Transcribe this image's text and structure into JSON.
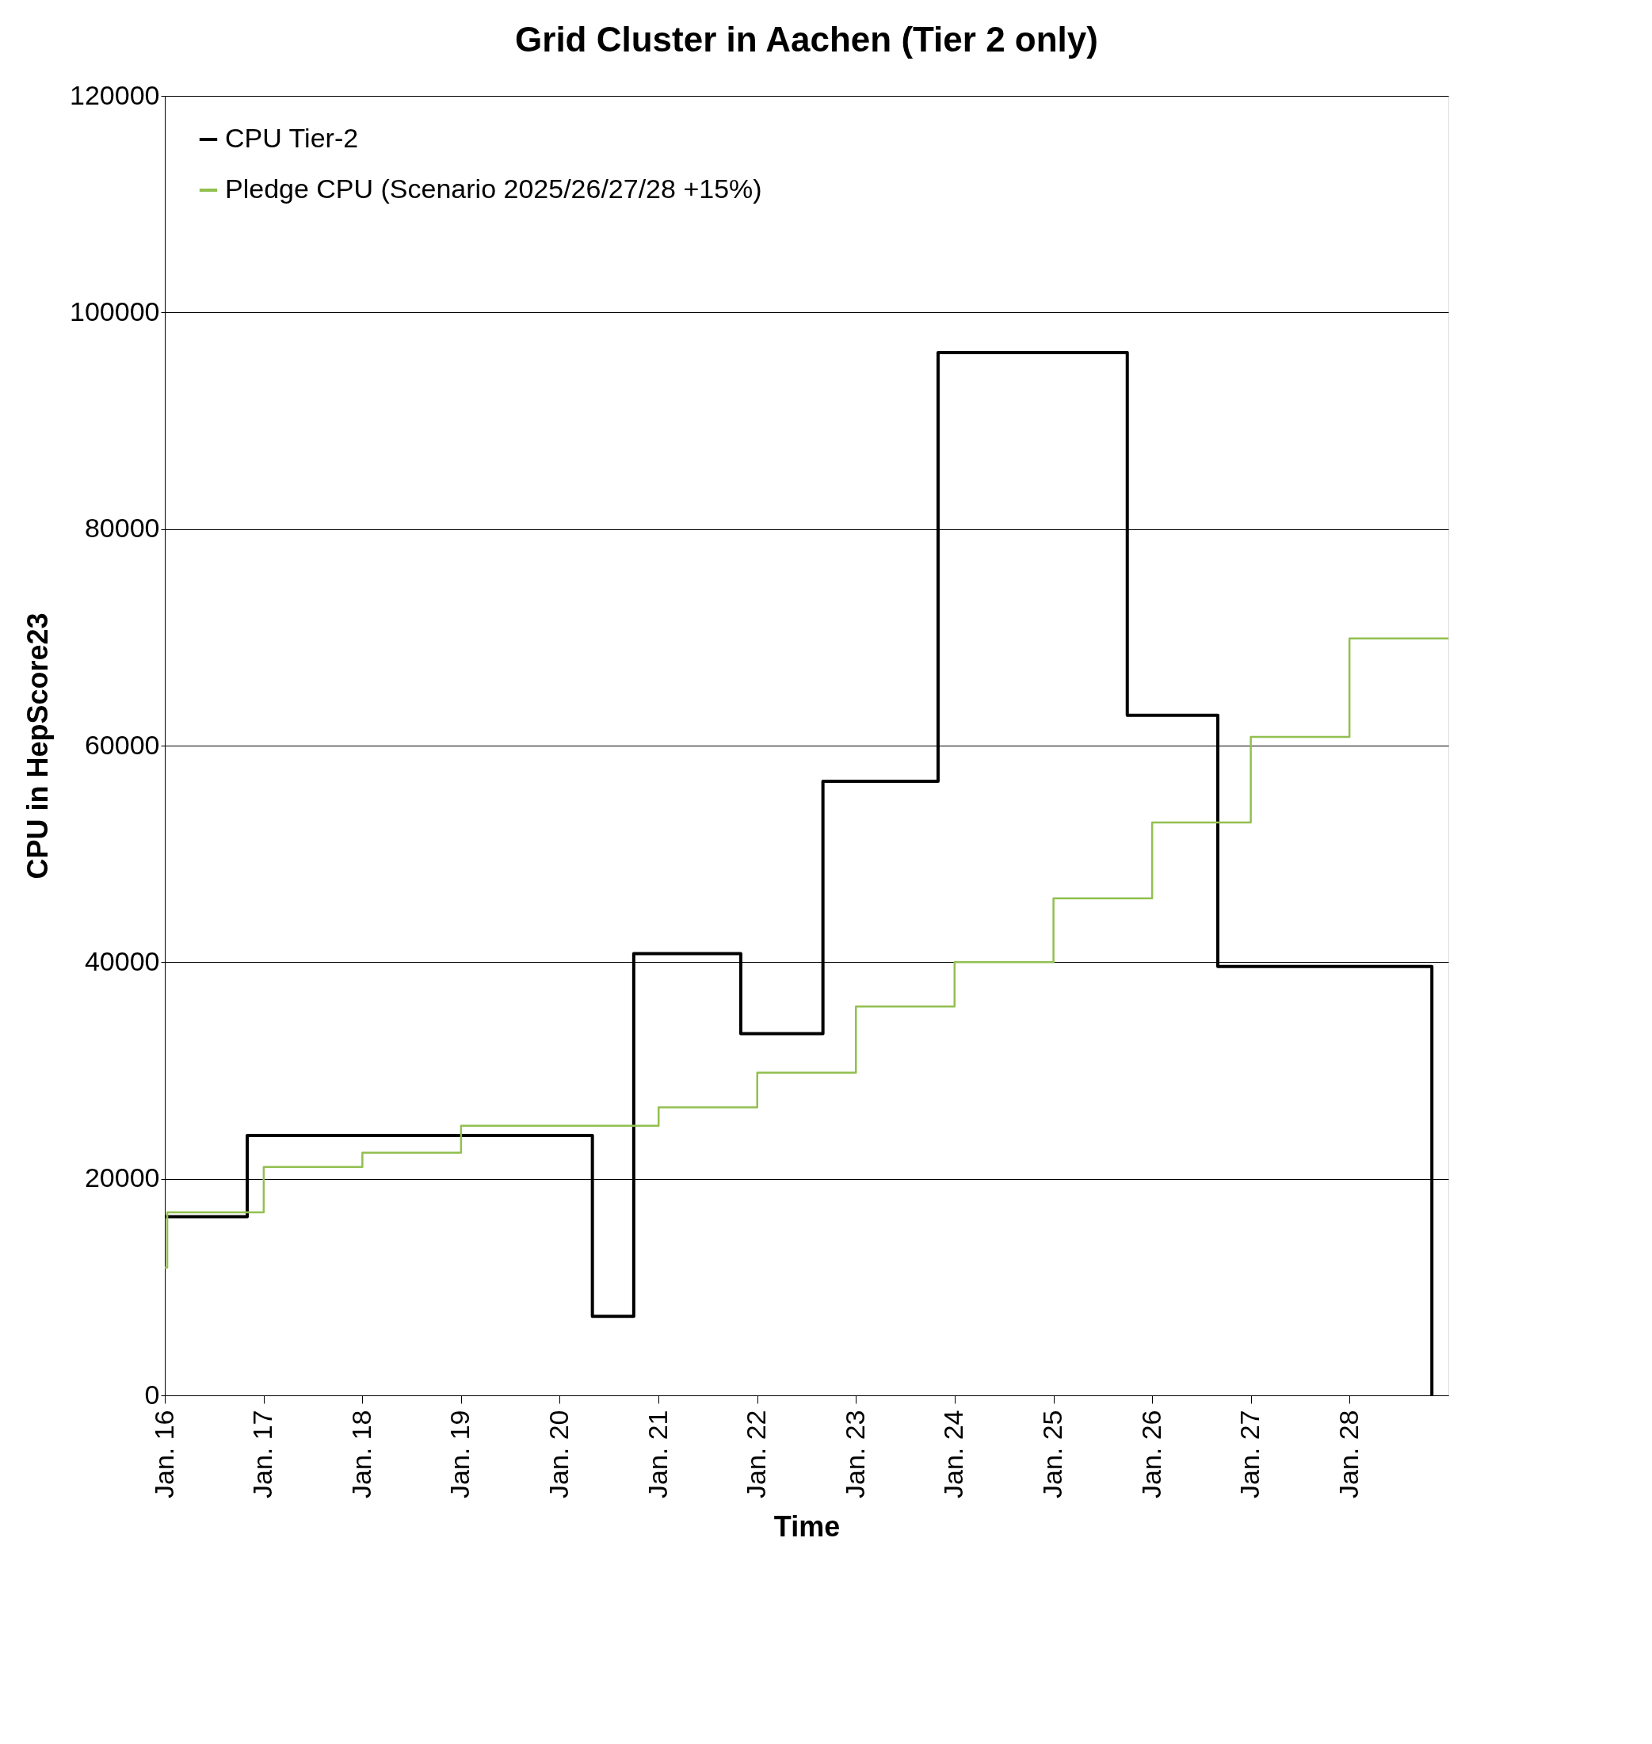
{
  "chart_data": {
    "type": "step",
    "title": "Grid Cluster in Aachen (Tier 2 only)",
    "xlabel": "Time",
    "ylabel": "CPU in HepScore23",
    "series": [
      {
        "name": "CPU Tier-2",
        "color": "#000000",
        "x": [
          "2016-01",
          "2016-11",
          "2020-05",
          "2020-10",
          "2021-11",
          "2022-09",
          "2023-11",
          "2025-10",
          "2026-09",
          "2028-11"
        ],
        "values": [
          16500,
          24000,
          7300,
          40800,
          33400,
          56700,
          96300,
          62800,
          39600,
          0
        ]
      },
      {
        "name": "Pledge CPU (Scenario 2025/26/27/28 +15%)",
        "color": "#92c050",
        "x": [
          "2016-01-01",
          "2016-01-10",
          "2017-01",
          "2018-01",
          "2019-01",
          "2021-01",
          "2022-01",
          "2023-01",
          "2024-01",
          "2025-01",
          "2026-01",
          "2027-01",
          "2028-01",
          "2029-01"
        ],
        "values": [
          11800,
          16900,
          21100,
          22400,
          24900,
          26600,
          29800,
          35900,
          40000,
          45900,
          52900,
          60800,
          69900,
          69900
        ]
      }
    ],
    "xlim": [
      "2016-01",
      "2029-01"
    ],
    "xticks": [
      {
        "value": "2016-01",
        "label": "Jan. 16"
      },
      {
        "value": "2017-01",
        "label": "Jan. 17"
      },
      {
        "value": "2018-01",
        "label": "Jan. 18"
      },
      {
        "value": "2019-01",
        "label": "Jan. 19"
      },
      {
        "value": "2020-01",
        "label": "Jan. 20"
      },
      {
        "value": "2021-01",
        "label": "Jan. 21"
      },
      {
        "value": "2022-01",
        "label": "Jan. 22"
      },
      {
        "value": "2023-01",
        "label": "Jan. 23"
      },
      {
        "value": "2024-01",
        "label": "Jan. 24"
      },
      {
        "value": "2025-01",
        "label": "Jan. 25"
      },
      {
        "value": "2026-01",
        "label": "Jan. 26"
      },
      {
        "value": "2027-01",
        "label": "Jan. 27"
      },
      {
        "value": "2028-01",
        "label": "Jan. 28"
      }
    ],
    "ylim": [
      0,
      120000
    ],
    "yticks": [
      0,
      20000,
      40000,
      60000,
      80000,
      100000,
      120000
    ],
    "grid": "y",
    "legend": "top left",
    "line_style": "solid"
  }
}
